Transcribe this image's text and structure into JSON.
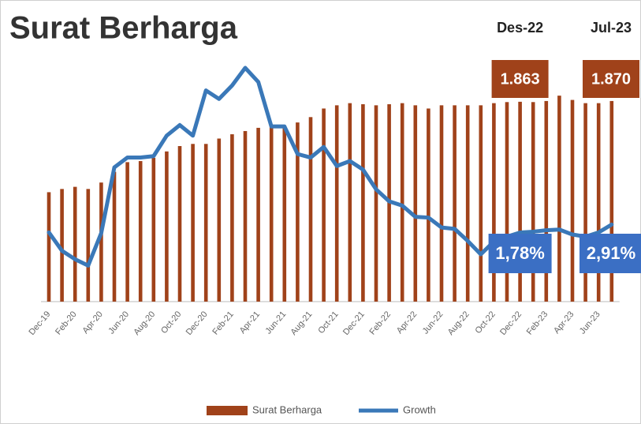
{
  "chart_data": {
    "type": "bar_line",
    "title": "Surat Berharga",
    "categories": [
      "Dec-19",
      null,
      "Feb-20",
      null,
      "Apr-20",
      null,
      "Jun-20",
      null,
      "Aug-20",
      null,
      "Oct-20",
      null,
      "Dec-20",
      null,
      "Feb-21",
      null,
      "Apr-21",
      null,
      "Jun-21",
      null,
      "Aug-21",
      null,
      "Oct-21",
      null,
      "Dec-21",
      null,
      "Feb-22",
      null,
      "Apr-22",
      null,
      "Jun-22",
      null,
      "Aug-22",
      null,
      "Oct-22",
      null,
      "Dec-22",
      null,
      "Feb-23",
      null,
      "Apr-23",
      null,
      "Jun-23",
      null
    ],
    "column_headers": [
      "Des-22",
      "Jul-23"
    ],
    "series": [
      {
        "name": "Surat Berharga",
        "color": "#a0421a",
        "values": [
          1.02,
          1.05,
          1.07,
          1.05,
          1.11,
          1.21,
          1.3,
          1.31,
          1.34,
          1.4,
          1.45,
          1.47,
          1.47,
          1.52,
          1.56,
          1.59,
          1.62,
          1.65,
          1.63,
          1.67,
          1.72,
          1.8,
          1.83,
          1.85,
          1.84,
          1.83,
          1.84,
          1.85,
          1.83,
          1.8,
          1.83,
          1.83,
          1.83,
          1.83,
          1.85,
          1.86,
          1.863,
          1.86,
          1.87,
          1.92,
          1.88,
          1.85,
          1.85,
          1.87
        ],
        "value_labels": [
          null,
          null,
          null,
          null,
          null,
          null,
          null,
          null,
          null,
          null,
          null,
          null,
          null,
          null,
          null,
          null,
          null,
          null,
          null,
          null,
          null,
          null,
          null,
          null,
          null,
          null,
          null,
          null,
          null,
          null,
          null,
          null,
          null,
          null,
          null,
          null,
          "1.863",
          null,
          null,
          null,
          null,
          null,
          null,
          "1.870"
        ]
      },
      {
        "name": "Growth",
        "color": "#3a78b8",
        "axis": "y2",
        "values": [
          1.8,
          -0.8,
          -2,
          -2.9,
          1.7,
          11,
          12.4,
          12.4,
          12.6,
          15.5,
          17,
          15.5,
          21.9,
          20.7,
          22.6,
          25.1,
          23.1,
          16.8,
          16.8,
          12.9,
          12.4,
          13.9,
          11.2,
          11.9,
          10.7,
          7.9,
          6.2,
          5.6,
          4,
          3.9,
          2.5,
          2.3,
          0.6,
          -1.3,
          0.5,
          1.2,
          1.78,
          1.9,
          2.1,
          2.2,
          1.5,
          1.2,
          1.8,
          2.91
        ],
        "value_labels": [
          null,
          null,
          null,
          null,
          null,
          null,
          null,
          null,
          null,
          null,
          null,
          null,
          null,
          null,
          null,
          null,
          null,
          null,
          null,
          null,
          null,
          null,
          null,
          null,
          null,
          null,
          null,
          null,
          null,
          null,
          null,
          null,
          null,
          null,
          null,
          null,
          "1,78%",
          null,
          null,
          null,
          null,
          null,
          null,
          "2,91%"
        ]
      }
    ],
    "ylim": [
      0,
      2.37
    ],
    "y2lim": [
      -8,
      28
    ],
    "legend": "bottom"
  }
}
